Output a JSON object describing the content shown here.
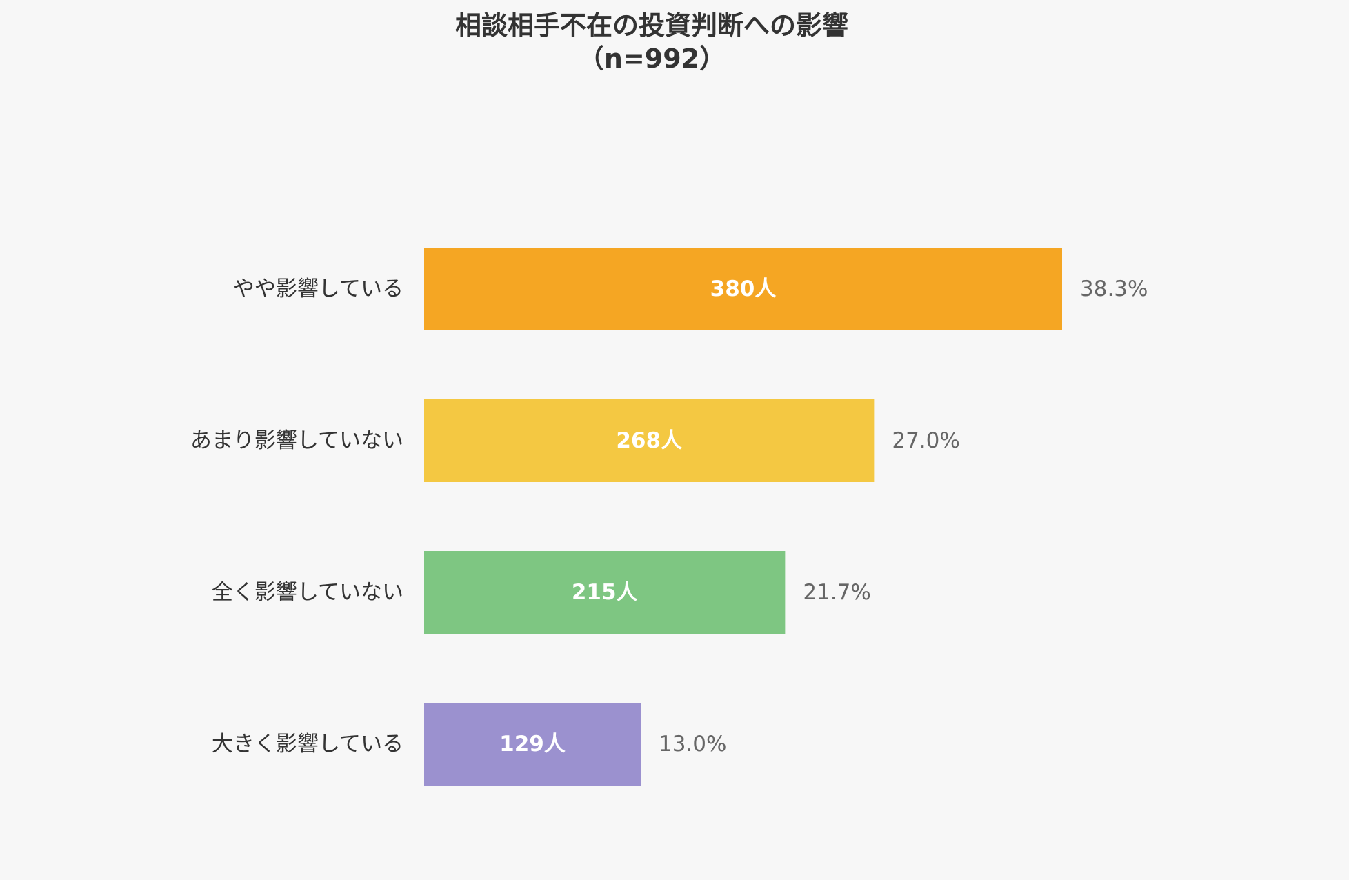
{
  "chart_data": {
    "type": "bar",
    "orientation": "horizontal",
    "title": "相談相手不在の投資判断への影響",
    "subtitle": "（n=992）",
    "categories": [
      "やや影響している",
      "あまり影響していない",
      "全く影響していない",
      "大きく影響している"
    ],
    "values": [
      380,
      268,
      215,
      129
    ],
    "value_labels": [
      "380人",
      "268人",
      "215人",
      "129人"
    ],
    "percentages": [
      38.3,
      27.0,
      21.7,
      13.0
    ],
    "percentage_labels": [
      "38.3%",
      "27.0%",
      "21.7%",
      "13.0%"
    ],
    "colors": [
      "#f5a623",
      "#f4c842",
      "#7ec682",
      "#9b91cf"
    ],
    "grid": false,
    "legend": "none",
    "xlim": [
      0,
      380
    ]
  }
}
